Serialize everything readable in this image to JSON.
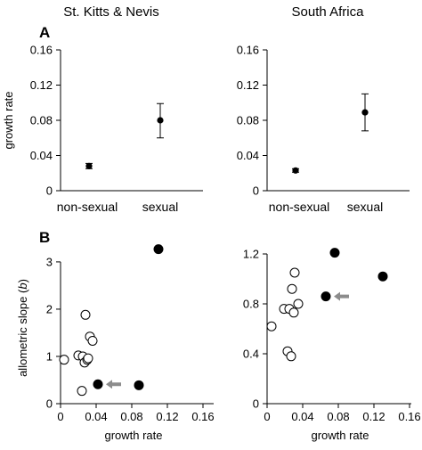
{
  "column_titles": [
    "St. Kitts & Nevis",
    "South Africa"
  ],
  "panel_letters": [
    "A",
    "B"
  ],
  "colors": {
    "ink": "#000000",
    "open_marker": "#ffffff",
    "arrow": "#8c8c8c"
  },
  "chart_data": [
    {
      "id": "A-left",
      "type": "scatter",
      "title": "",
      "xlabel": "",
      "ylabel": "growth rate",
      "categories": [
        "non-sexual",
        "sexual"
      ],
      "values": [
        0.028,
        0.08
      ],
      "error_low": [
        0.025,
        0.06
      ],
      "error_high": [
        0.031,
        0.099
      ],
      "ylim": [
        0,
        0.16
      ],
      "yticks": [
        0,
        0.04,
        0.08,
        0.12,
        0.16
      ],
      "ytick_labels": [
        "0",
        "0.04",
        "0.08",
        "0.12",
        "0.16"
      ],
      "grid": false
    },
    {
      "id": "A-right",
      "type": "scatter",
      "title": "",
      "xlabel": "",
      "ylabel": "",
      "categories": [
        "non-sexual",
        "sexual"
      ],
      "values": [
        0.023,
        0.089
      ],
      "error_low": [
        0.021,
        0.068
      ],
      "error_high": [
        0.025,
        0.11
      ],
      "ylim": [
        0,
        0.16
      ],
      "yticks": [
        0,
        0.04,
        0.08,
        0.12,
        0.16
      ],
      "ytick_labels": [
        "0",
        "0.04",
        "0.08",
        "0.12",
        "0.16"
      ],
      "grid": false
    },
    {
      "id": "B-left",
      "type": "scatter",
      "title": "",
      "xlabel": "growth rate",
      "ylabel_main": "allometric slope (",
      "ylabel_italic": "b",
      "ylabel_end": ")",
      "xlim": [
        0,
        0.16
      ],
      "ylim": [
        0,
        3.3
      ],
      "xticks": [
        0,
        0.04,
        0.08,
        0.12,
        0.16
      ],
      "xtick_labels": [
        "0",
        "0.04",
        "0.08",
        "0.12",
        "0.16"
      ],
      "yticks": [
        0,
        1,
        2,
        3
      ],
      "ytick_labels": [
        "0",
        "1",
        "2",
        "3"
      ],
      "grid": false,
      "series": [
        {
          "marker": "open",
          "x": [
            0.004,
            0.02,
            0.024,
            0.025,
            0.027,
            0.028,
            0.03,
            0.031,
            0.033,
            0.036
          ],
          "y": [
            0.93,
            1.02,
            0.27,
            1.0,
            0.87,
            1.88,
            0.93,
            0.96,
            1.42,
            1.33
          ]
        },
        {
          "marker": "filled",
          "x": [
            0.042,
            0.088,
            0.11
          ],
          "y": [
            0.41,
            0.39,
            3.27
          ]
        }
      ],
      "arrow_to": {
        "x": 0.042,
        "y": 0.41
      }
    },
    {
      "id": "B-right",
      "type": "scatter",
      "title": "",
      "xlabel": "growth rate",
      "ylabel": "",
      "xlim": [
        0,
        0.16
      ],
      "ylim": [
        0,
        1.25
      ],
      "xticks": [
        0,
        0.04,
        0.08,
        0.12,
        0.16
      ],
      "xtick_labels": [
        "0",
        "0.04",
        "0.08",
        "0.12",
        "0.16"
      ],
      "yticks": [
        0,
        0.4,
        0.8,
        1.2
      ],
      "ytick_labels": [
        "0",
        "0.4",
        "0.8",
        "1.2"
      ],
      "grid": false,
      "series": [
        {
          "marker": "open",
          "x": [
            0.005,
            0.019,
            0.023,
            0.025,
            0.027,
            0.028,
            0.03,
            0.031,
            0.035
          ],
          "y": [
            0.62,
            0.76,
            0.42,
            0.76,
            0.38,
            0.92,
            0.73,
            1.05,
            0.8
          ]
        },
        {
          "marker": "filled",
          "x": [
            0.066,
            0.076,
            0.13
          ],
          "y": [
            0.86,
            1.21,
            1.02
          ]
        }
      ],
      "arrow_to": {
        "x": 0.066,
        "y": 0.86
      }
    }
  ]
}
